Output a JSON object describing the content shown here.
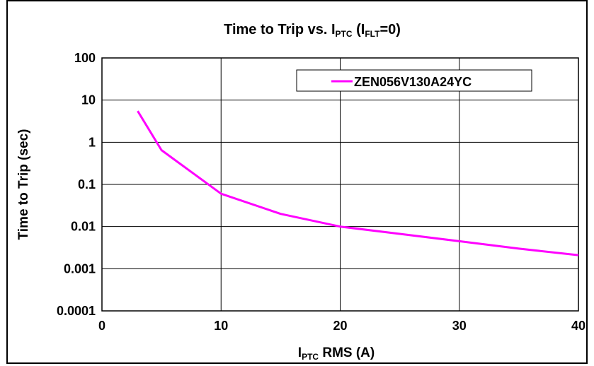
{
  "chart_data": {
    "type": "line",
    "title": {
      "prefix": "Time to Trip vs. I",
      "sub1": "PTC",
      "mid": " (I",
      "sub2": "FLT",
      "suffix": "=0)"
    },
    "xlabel": {
      "main": "I",
      "sub": "PTC",
      "rest": " RMS (A)"
    },
    "ylabel": "Time to Trip (sec)",
    "xlim": [
      0,
      40
    ],
    "ylim": [
      0.0001,
      100
    ],
    "y_scale": "log",
    "grid": true,
    "legend_position": "top-center",
    "x_ticks": [
      "0",
      "10",
      "20",
      "30",
      "40"
    ],
    "y_ticks": [
      "100",
      "10",
      "1",
      "0.1",
      "0.01",
      "0.001",
      "0.0001"
    ],
    "series": [
      {
        "name": "ZEN056V130A24YC",
        "color": "#ff00ff",
        "x": [
          3,
          5,
          10,
          15,
          20,
          25,
          30,
          35,
          40
        ],
        "y": [
          5.5,
          0.65,
          0.06,
          0.02,
          0.01,
          0.0067,
          0.0045,
          0.003,
          0.0021
        ]
      }
    ]
  }
}
